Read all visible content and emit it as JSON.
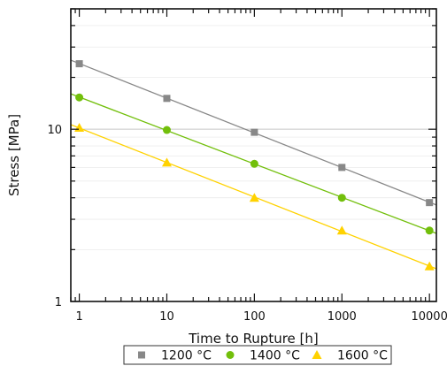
{
  "chart_data": {
    "type": "line",
    "xlabel": "Time to Rupture [h]",
    "ylabel": "Stress [MPa]",
    "x_scale": "log",
    "y_scale": "log",
    "xlim": [
      0.8,
      12000
    ],
    "ylim": [
      1,
      50
    ],
    "x_ticks": [
      1,
      10,
      100,
      1000,
      10000
    ],
    "x_tick_labels": [
      "1",
      "10",
      "100",
      "1000",
      "10000"
    ],
    "y_ticks": [
      1,
      10
    ],
    "y_tick_labels": [
      "1",
      "10"
    ],
    "grid": "horizontal",
    "legend_position": "bottom",
    "series": [
      {
        "name": "1200 °C",
        "marker": "square",
        "color": "#888888",
        "x": [
          1,
          10,
          100,
          1000,
          10000
        ],
        "y": [
          24.0,
          15.1,
          9.6,
          6.0,
          3.75
        ]
      },
      {
        "name": "1400 °C",
        "marker": "circle",
        "color": "#72bf0b",
        "x": [
          1,
          10,
          100,
          1000,
          10000
        ],
        "y": [
          15.3,
          9.9,
          6.3,
          4.0,
          2.58
        ]
      },
      {
        "name": "1600 °C",
        "marker": "triangle",
        "color": "#ffd200",
        "x": [
          1,
          10,
          100,
          1000,
          10000
        ],
        "y": [
          10.2,
          6.4,
          4.0,
          2.58,
          1.6
        ]
      }
    ]
  }
}
